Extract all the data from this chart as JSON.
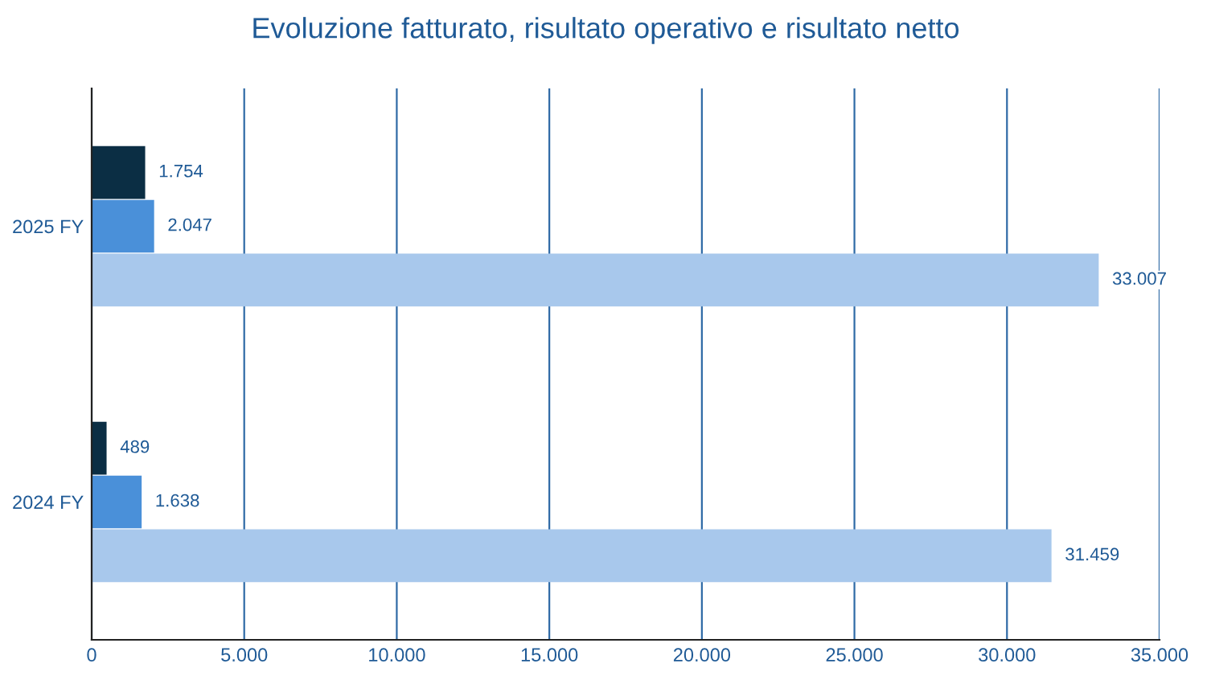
{
  "chart_data": {
    "type": "bar",
    "orientation": "horizontal",
    "title": "Evoluzione fatturato, risultato operativo e risultato netto",
    "categories": [
      "2025 FY",
      "2024 FY"
    ],
    "series": [
      {
        "color": "#0b2e44",
        "values": [
          1754,
          489
        ],
        "value_labels": [
          "1.754",
          "489"
        ]
      },
      {
        "color": "#4a90d9",
        "values": [
          2047,
          1638
        ],
        "value_labels": [
          "2.047",
          "1.638"
        ]
      },
      {
        "color": "#a8c8ec",
        "values": [
          33007,
          31459
        ],
        "value_labels": [
          "33.007",
          "31.459"
        ]
      }
    ],
    "xlim": [
      0,
      35000
    ],
    "xticks": [
      0,
      {
        "value": 5000,
        "label": "5.000"
      },
      {
        "value": 10000,
        "label": "10.000"
      },
      {
        "value": 15000,
        "label": "15.000"
      },
      {
        "value": 20000,
        "label": "20.000"
      },
      {
        "value": 25000,
        "label": "25.000"
      },
      {
        "value": 30000,
        "label": "30.000"
      },
      {
        "value": 35000,
        "label": "35.000"
      }
    ],
    "grid": "x",
    "legend": false
  }
}
